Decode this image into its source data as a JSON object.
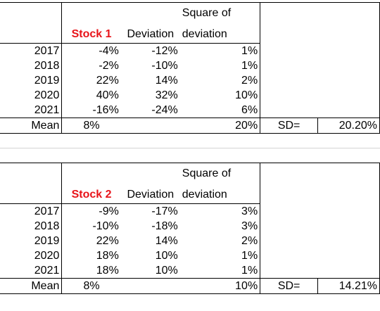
{
  "tables": [
    {
      "stock_label": "Stock 1",
      "header_deviation": "Deviation",
      "header_square_line1": "Square of",
      "header_square_line2": "deviation",
      "rows": [
        {
          "year": "2017",
          "return": "-4%",
          "deviation": "-12%",
          "square": "1%"
        },
        {
          "year": "2018",
          "return": "-2%",
          "deviation": "-10%",
          "square": "1%"
        },
        {
          "year": "2019",
          "return": "22%",
          "deviation": "14%",
          "square": "2%"
        },
        {
          "year": "2020",
          "return": "40%",
          "deviation": "32%",
          "square": "10%"
        },
        {
          "year": "2021",
          "return": "-16%",
          "deviation": "-24%",
          "square": "6%"
        }
      ],
      "mean_label": "Mean",
      "mean_return": "8%",
      "mean_square": "20%",
      "sd_label": "SD=",
      "sd_value": "20.20%"
    },
    {
      "stock_label": "Stock 2",
      "header_deviation": "Deviation",
      "header_square_line1": "Square of",
      "header_square_line2": "deviation",
      "rows": [
        {
          "year": "2017",
          "return": "-9%",
          "deviation": "-17%",
          "square": "3%"
        },
        {
          "year": "2018",
          "return": "-10%",
          "deviation": "-18%",
          "square": "3%"
        },
        {
          "year": "2019",
          "return": "22%",
          "deviation": "14%",
          "square": "2%"
        },
        {
          "year": "2020",
          "return": "18%",
          "deviation": "10%",
          "square": "1%"
        },
        {
          "year": "2021",
          "return": "18%",
          "deviation": "10%",
          "square": "1%"
        }
      ],
      "mean_label": "Mean",
      "mean_return": "8%",
      "mean_square": "10%",
      "sd_label": "SD=",
      "sd_value": "14.21%"
    }
  ],
  "colors": {
    "stock_label": "#e8141a",
    "border": "#000000",
    "gridline": "#d4d4d4"
  }
}
